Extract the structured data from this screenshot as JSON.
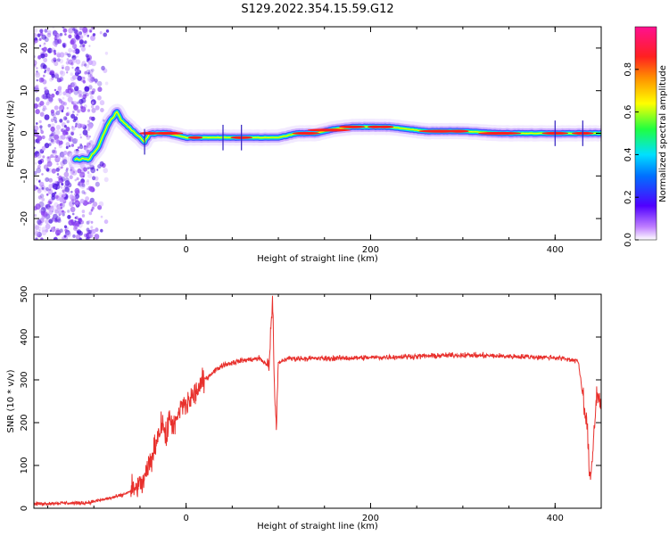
{
  "title": "S129.2022.354.15.59.G12",
  "colors": {
    "snr_line": "#e8302c",
    "spectrogram_scatter": "#6a1fd8",
    "frame": "#000000"
  },
  "colorbar": {
    "label": "Normalized spectral amplitude",
    "ticks": [
      "0.0",
      "0.2",
      "0.4",
      "0.6",
      "0.8"
    ],
    "tick_values": [
      0.0,
      0.2,
      0.4,
      0.6,
      0.8
    ],
    "range": [
      0,
      1
    ],
    "colormap": "hsv-rainbow (white/purple low → blue → cyan → green → yellow → orange → red → magenta high)"
  },
  "chart_data": [
    {
      "type": "heatmap",
      "title": "S129.2022.354.15.59.G12",
      "xlabel": "Height of straight line (km)",
      "ylabel": "Frequency (Hz)",
      "xlim": [
        -165,
        450
      ],
      "ylim": [
        -25,
        25
      ],
      "x_ticks": [
        0,
        200,
        400
      ],
      "x_tick_labels": [
        "0",
        "200",
        "400"
      ],
      "y_ticks": [
        20,
        10,
        0,
        -10,
        -20
      ],
      "y_tick_labels": [
        "20",
        "10",
        "0",
        "-10",
        "-20"
      ],
      "ridge": {
        "x": [
          -120,
          -105,
          -95,
          -85,
          -75,
          -70,
          -65,
          -60,
          -55,
          -50,
          -45,
          -40,
          -30,
          -20,
          0,
          40,
          80,
          100,
          120,
          140,
          150,
          160,
          180,
          200,
          220,
          260,
          300,
          340,
          380,
          420,
          450
        ],
        "y": [
          -6,
          -6,
          -3,
          2,
          5,
          3,
          2,
          1,
          0,
          -1,
          -2,
          0,
          0,
          0,
          -1,
          -1,
          -1,
          -1,
          0,
          0,
          0.5,
          1,
          1.5,
          1.5,
          1.5,
          0.5,
          0.5,
          0,
          0,
          0,
          0
        ]
      },
      "noise_region_x": [
        -165,
        -100
      ]
    },
    {
      "type": "line",
      "xlabel": "Height of straight line (km)",
      "ylabel": "SNR (10 * v/v)",
      "xlim": [
        -165,
        450
      ],
      "ylim": [
        0,
        500
      ],
      "x_ticks": [
        0,
        200,
        400
      ],
      "x_tick_labels": [
        "0",
        "200",
        "400"
      ],
      "y_ticks": [
        0,
        100,
        200,
        300,
        400,
        500
      ],
      "y_tick_labels": [
        "0",
        "100",
        "200",
        "300",
        "400",
        "500"
      ],
      "series": [
        {
          "x": [
            -165,
            -140,
            -110,
            -90,
            -70,
            -55,
            -45,
            -40,
            -35,
            -30,
            -25,
            -22,
            -18,
            -12,
            -5,
            0,
            10,
            20,
            30,
            40,
            50,
            60,
            80,
            90,
            92,
            94,
            96,
            98,
            100,
            105,
            110,
            150,
            200,
            250,
            300,
            350,
            400,
            425,
            435,
            438,
            440,
            445,
            450
          ],
          "y": [
            10,
            12,
            12,
            20,
            30,
            45,
            65,
            100,
            130,
            180,
            200,
            160,
            210,
            190,
            240,
            240,
            270,
            300,
            320,
            335,
            340,
            345,
            350,
            330,
            440,
            470,
            250,
            190,
            340,
            345,
            350,
            350,
            352,
            355,
            358,
            355,
            352,
            345,
            180,
            60,
            110,
            270,
            240
          ]
        }
      ]
    }
  ]
}
